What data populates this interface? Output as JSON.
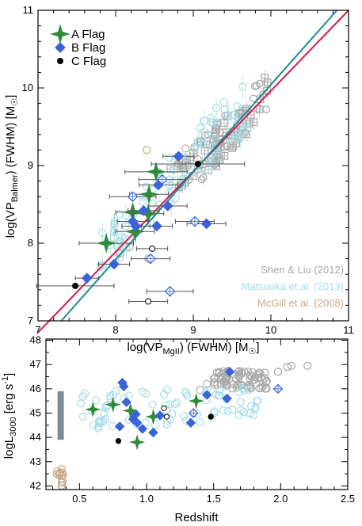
{
  "colors": {
    "a_flag": "#2e8b3a",
    "b_flag": "#3a63d8",
    "c_flag": "#000000",
    "shen": "#a8a8a8",
    "matsuoka": "#a6dde6",
    "mcgill": "#c9a98a",
    "fit_red": "#d81b4a",
    "fit_teal": "#1a8c96",
    "bar": "#7d8a99"
  },
  "chart_data": [
    {
      "type": "scatter",
      "xlim": [
        7,
        11
      ],
      "ylim": [
        7,
        11
      ],
      "x_ticks": [
        "7",
        "8",
        "9",
        "10",
        "11"
      ],
      "y_ticks": [
        "7",
        "8",
        "9",
        "10",
        "11"
      ],
      "xlabel": {
        "pre": "log(VP",
        "sub": "MgII",
        "post": ") (FWHM) [M",
        "sun": "☉",
        "end": "]"
      },
      "ylabel": {
        "pre": "log(VP",
        "sub": "Balmer",
        "post": ") (FWHM) [M",
        "sun": "☉",
        "end": "]"
      },
      "legend": [
        {
          "label": "A Flag",
          "marker": "star",
          "color": "#2e8b3a"
        },
        {
          "label": "B Flag",
          "marker": "diamond",
          "color": "#3a63d8"
        },
        {
          "label": "C Flag",
          "marker": "dot",
          "color": "#000000"
        }
      ],
      "credits": [
        {
          "label": "Shen & Liu (2012)",
          "color": "#a8a8a8"
        },
        {
          "label": "Matsuoka et al. (2013)",
          "color": "#a6dde6"
        },
        {
          "label": "McGill et al. (2008)",
          "color": "#c9a98a"
        }
      ],
      "fit_lines": [
        {
          "color": "#d81b4a",
          "points": [
            [
              7,
              6.85
            ],
            [
              11,
              11.0
            ]
          ]
        },
        {
          "color": "#1a8c96",
          "points": [
            [
              7.3,
              7.0
            ],
            [
              10.85,
              11.0
            ]
          ]
        }
      ],
      "series": [
        {
          "group": "A",
          "marker": "star",
          "filled": true,
          "points": [
            [
              7.88,
              8.0,
              0.35
            ],
            [
              8.22,
              8.4,
              0.22
            ],
            [
              8.25,
              8.15,
              0.25
            ],
            [
              8.42,
              8.38,
              0.2
            ],
            [
              8.43,
              8.63,
              0.25
            ],
            [
              8.52,
              8.92,
              0.4
            ]
          ]
        },
        {
          "group": "B",
          "marker": "diamond",
          "filled": true,
          "points": [
            [
              7.63,
              7.55,
              0.15
            ],
            [
              7.98,
              7.73,
              0.2
            ],
            [
              8.22,
              8.28,
              0.2
            ],
            [
              8.26,
              8.22,
              0.18
            ],
            [
              8.36,
              8.42,
              0.2
            ],
            [
              8.53,
              8.22,
              0.2
            ],
            [
              8.55,
              8.75,
              0.25
            ],
            [
              8.67,
              8.48,
              0.25
            ],
            [
              8.81,
              9.12,
              0.2
            ],
            [
              9.17,
              8.25,
              0.25
            ]
          ]
        },
        {
          "group": "B",
          "marker": "diamond",
          "filled": false,
          "points": [
            [
              8.22,
              8.6,
              0.3
            ],
            [
              8.45,
              7.8,
              0.25
            ],
            [
              8.6,
              8.82,
              0.3
            ],
            [
              8.7,
              7.38,
              0.3
            ],
            [
              9.02,
              8.28,
              0.25
            ]
          ]
        },
        {
          "group": "C",
          "marker": "dot",
          "filled": true,
          "points": [
            [
              7.48,
              7.45,
              0.5
            ],
            [
              9.06,
              9.02,
              0.6
            ]
          ]
        },
        {
          "group": "C",
          "marker": "dot",
          "filled": false,
          "points": [
            [
              8.42,
              7.25,
              0.25
            ],
            [
              8.47,
              7.93,
              0.2
            ]
          ]
        }
      ]
    },
    {
      "type": "scatter",
      "xlim": [
        0.25,
        2.5
      ],
      "ylim": [
        41.85,
        48.05
      ],
      "x_ticks": [
        "0.5",
        "1.0",
        "1.5",
        "2.0",
        "2.5"
      ],
      "y_ticks": [
        "42",
        "43",
        "44",
        "45",
        "46",
        "47",
        "48"
      ],
      "xlabel": "Redshift",
      "ylabel": {
        "pre": "logL",
        "sub": "3000",
        "post": " [erg s",
        "sup": "-1",
        "end": "]"
      },
      "range_bar": {
        "x": 0.36,
        "y": [
          43.9,
          45.9
        ]
      },
      "series": [
        {
          "group": "A",
          "marker": "star",
          "filled": true,
          "points": [
            [
              0.6,
              45.15
            ],
            [
              0.75,
              45.35
            ],
            [
              0.88,
              45.1
            ],
            [
              0.93,
              43.8
            ],
            [
              1.05,
              44.85
            ],
            [
              1.37,
              45.5
            ]
          ]
        },
        {
          "group": "B",
          "marker": "diamond",
          "filled": true,
          "points": [
            [
              0.8,
              44.45
            ],
            [
              0.82,
              46.25
            ],
            [
              0.83,
              46.1
            ],
            [
              0.85,
              45.45
            ],
            [
              0.9,
              44.75
            ],
            [
              0.92,
              44.95
            ],
            [
              0.93,
              44.6
            ],
            [
              0.97,
              44.35
            ],
            [
              1.05,
              44.2
            ],
            [
              1.1,
              44.9
            ],
            [
              1.33,
              44.6
            ],
            [
              1.45,
              45.75
            ],
            [
              1.6,
              45.6
            ],
            [
              1.62,
              46.7
            ]
          ]
        },
        {
          "group": "B",
          "marker": "diamond",
          "filled": false,
          "points": [
            [
              1.35,
              45.0
            ],
            [
              1.98,
              46.0
            ]
          ]
        },
        {
          "group": "C",
          "marker": "dot",
          "filled": true,
          "points": [
            [
              0.79,
              43.85
            ],
            [
              1.48,
              44.85
            ]
          ]
        },
        {
          "group": "C",
          "marker": "dot",
          "filled": false,
          "points": [
            [
              1.13,
              45.2
            ],
            [
              1.15,
              44.85
            ]
          ]
        }
      ]
    }
  ]
}
